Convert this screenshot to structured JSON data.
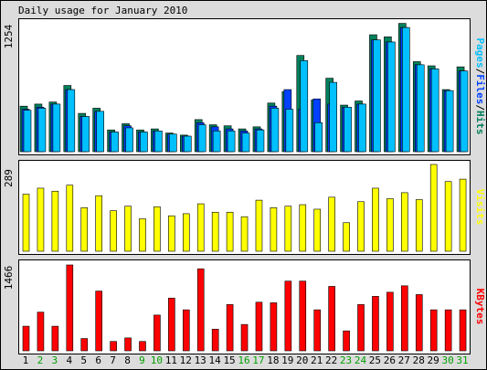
{
  "title": "Daily usage for January 2010",
  "colors": {
    "hits": "#00805c",
    "files": "#0040ff",
    "pages": "#00c0ff",
    "visits": "#ffff00",
    "kbytes": "#ff0000",
    "weekend_label": "#00a000",
    "weekday_label": "#000000"
  },
  "chart_data": [
    {
      "type": "bar",
      "panel": "usage",
      "ymax_label": "1254",
      "ymax": 1254,
      "legend": [
        {
          "name": "Pages",
          "color": "#00c0ff"
        },
        {
          "name": "Files",
          "color": "#0040ff"
        },
        {
          "name": "Hits",
          "color": "#00805c"
        }
      ],
      "days": [
        "1",
        "2",
        "3",
        "4",
        "5",
        "6",
        "7",
        "8",
        "9",
        "10",
        "11",
        "12",
        "13",
        "14",
        "15",
        "16",
        "17",
        "18",
        "19",
        "20",
        "21",
        "22",
        "23",
        "24",
        "25",
        "26",
        "27",
        "28",
        "29",
        "30",
        "31"
      ],
      "weekend_days": [
        "2",
        "3",
        "9",
        "10",
        "16",
        "17",
        "23",
        "24",
        "30",
        "31"
      ],
      "series": [
        {
          "name": "Hits",
          "values": [
            440,
            460,
            480,
            640,
            370,
            420,
            210,
            270,
            210,
            220,
            180,
            160,
            310,
            260,
            250,
            220,
            240,
            470,
            580,
            930,
            500,
            710,
            450,
            490,
            1130,
            1110,
            1240,
            870,
            830,
            600,
            820
          ]
        },
        {
          "name": "Files",
          "values": [
            410,
            430,
            460,
            600,
            340,
            390,
            190,
            250,
            190,
            200,
            170,
            150,
            280,
            240,
            220,
            200,
            220,
            440,
            600,
            410,
            510,
            460,
            430,
            460,
            1080,
            1060,
            1200,
            840,
            800,
            590,
            780
          ]
        },
        {
          "name": "Pages",
          "values": [
            400,
            420,
            460,
            600,
            340,
            390,
            190,
            230,
            190,
            200,
            170,
            150,
            260,
            200,
            200,
            180,
            210,
            420,
            410,
            880,
            280,
            670,
            430,
            460,
            1080,
            1060,
            1200,
            840,
            800,
            590,
            780
          ]
        }
      ]
    },
    {
      "type": "bar",
      "panel": "visits",
      "ymax_label": "289",
      "ymax": 289,
      "legend": [
        {
          "name": "Visits",
          "color": "#ffff00"
        }
      ],
      "days": [
        "1",
        "2",
        "3",
        "4",
        "5",
        "6",
        "7",
        "8",
        "9",
        "10",
        "11",
        "12",
        "13",
        "14",
        "15",
        "16",
        "17",
        "18",
        "19",
        "20",
        "21",
        "22",
        "23",
        "24",
        "25",
        "26",
        "27",
        "28",
        "29",
        "30",
        "31"
      ],
      "series": [
        {
          "name": "Visits",
          "values": [
            190,
            210,
            200,
            220,
            145,
            185,
            135,
            150,
            108,
            148,
            118,
            125,
            158,
            130,
            130,
            115,
            170,
            145,
            150,
            155,
            140,
            180,
            95,
            165,
            210,
            175,
            195,
            172,
            289,
            232,
            240
          ]
        }
      ]
    },
    {
      "type": "bar",
      "panel": "kbytes",
      "ymax_label": "1466",
      "ymax": 1466,
      "legend": [
        {
          "name": "KBytes",
          "color": "#ff0000"
        }
      ],
      "days": [
        "1",
        "2",
        "3",
        "4",
        "5",
        "6",
        "7",
        "8",
        "9",
        "10",
        "11",
        "12",
        "13",
        "14",
        "15",
        "16",
        "17",
        "18",
        "19",
        "20",
        "21",
        "22",
        "23",
        "24",
        "25",
        "26",
        "27",
        "28",
        "29",
        "30",
        "31"
      ],
      "series": [
        {
          "name": "KBytes",
          "values": [
            420,
            660,
            420,
            1466,
            210,
            1020,
            160,
            220,
            160,
            610,
            900,
            700,
            1400,
            370,
            790,
            450,
            830,
            820,
            1190,
            1190,
            700,
            1100,
            340,
            790,
            930,
            1000,
            1110,
            960,
            700,
            700,
            700
          ]
        }
      ]
    }
  ]
}
